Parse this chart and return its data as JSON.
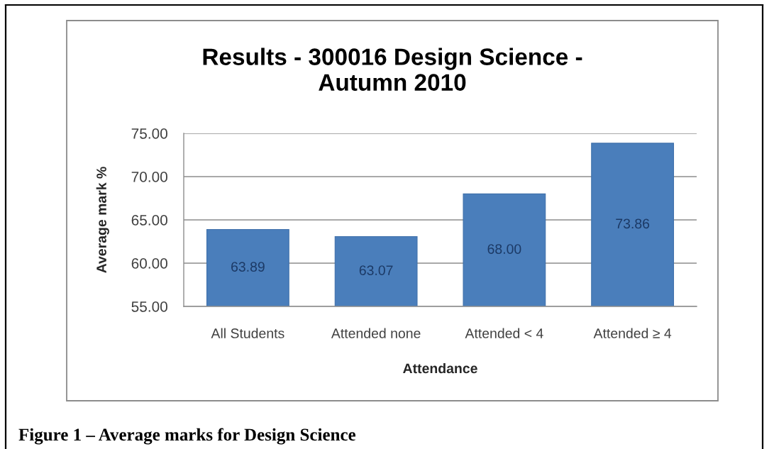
{
  "chart_data": {
    "type": "bar",
    "title": "Results - 300016 Design Science -\nAutumn 2010",
    "xlabel": "Attendance",
    "ylabel": "Average mark %",
    "categories": [
      "All Students",
      "Attended none",
      "Attended < 4",
      "Attended ≥ 4"
    ],
    "values": [
      63.89,
      63.07,
      68.0,
      73.86
    ],
    "value_labels": [
      "63.89",
      "63.07",
      "68.00",
      "73.86"
    ],
    "color": "#4a7ebb",
    "ylim": [
      55,
      75
    ],
    "yticks": [
      {
        "value": 55,
        "label": "55.00"
      },
      {
        "value": 60,
        "label": "60.00"
      },
      {
        "value": 65,
        "label": "65.00"
      },
      {
        "value": 70,
        "label": "70.00"
      },
      {
        "value": 75,
        "label": "75.00"
      }
    ],
    "grid": "y",
    "annotations": [
      "Figure 1 – Average marks for Design Science"
    ]
  }
}
